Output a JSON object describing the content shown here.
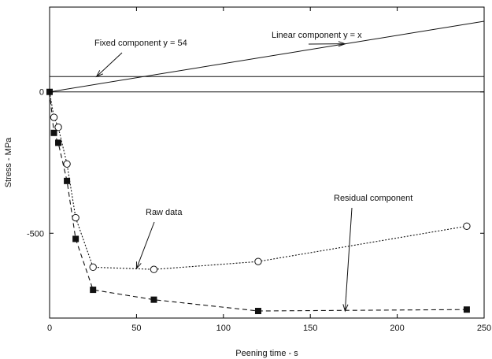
{
  "chart_data": {
    "type": "line",
    "xlabel": "Peening time - s",
    "ylabel": "Stress - MPa",
    "xlim": [
      0,
      250
    ],
    "ylim": [
      -800,
      300
    ],
    "x_ticks": [
      0,
      50,
      100,
      150,
      200,
      250
    ],
    "y_ticks": [
      0,
      -500
    ],
    "grid": false,
    "series": [
      {
        "name": "Raw data",
        "marker": "open-circle",
        "line_style": "dotted",
        "x": [
          0,
          2.5,
          5,
          10,
          15,
          25,
          60,
          120,
          240
        ],
        "y": [
          0,
          -90,
          -125,
          -255,
          -445,
          -620,
          -628,
          -600,
          -475
        ]
      },
      {
        "name": "Residual component",
        "marker": "filled-square",
        "line_style": "dashed",
        "x": [
          0,
          2.5,
          5,
          10,
          15,
          25,
          60,
          120,
          240
        ],
        "y": [
          0,
          -145,
          -180,
          -315,
          -520,
          -700,
          -735,
          -775,
          -770
        ]
      },
      {
        "name": "Linear component y = x",
        "marker": "none",
        "line_style": "solid",
        "x": [
          0,
          250
        ],
        "y": [
          0,
          250
        ]
      },
      {
        "name": "Fixed component y = 54",
        "marker": "none",
        "line_style": "solid",
        "x": [
          0,
          250
        ],
        "y": [
          54,
          54
        ]
      },
      {
        "name": "zero line",
        "marker": "none",
        "line_style": "solid",
        "x": [
          0,
          250
        ],
        "y": [
          0,
          0
        ]
      }
    ],
    "annotations": [
      {
        "text": "Fixed component y = 54",
        "point_to": [
          27,
          54
        ]
      },
      {
        "text": "Linear component y = x",
        "point_to": [
          170,
          170
        ]
      },
      {
        "text": "Raw data",
        "point_to": [
          50,
          -625
        ]
      },
      {
        "text": "Residual component",
        "point_to": [
          170,
          -775
        ]
      }
    ]
  }
}
